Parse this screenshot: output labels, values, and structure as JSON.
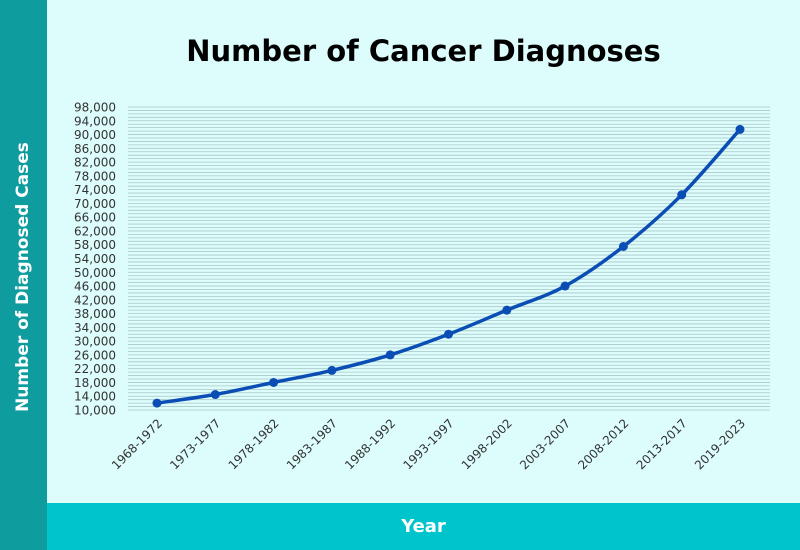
{
  "colors": {
    "background": "#ddfcfc",
    "side_band": "#0f9c9f",
    "bottom_band": "#00c4cc",
    "line": "#0a4db5",
    "grid": "#a9c7c7"
  },
  "chart_data": {
    "type": "line",
    "title": "Number of Cancer Diagnoses",
    "xlabel": "Year",
    "ylabel": "Number of Diagnosed Cases",
    "categories": [
      "1968-1972",
      "1973-1977",
      "1978-1982",
      "1983-1987",
      "1988-1992",
      "1993-1997",
      "1998-2002",
      "2003-2007",
      "2008-2012",
      "2013-2017",
      "2019-2023"
    ],
    "series": [
      {
        "values": [
          12000,
          14500,
          18000,
          21500,
          26000,
          32000,
          39000,
          46000,
          57500,
          72500,
          91500
        ]
      }
    ],
    "ylim": [
      10000,
      98000
    ],
    "yticks": [
      "10,000",
      "14,000",
      "18,000",
      "22,000",
      "26,000",
      "30,000",
      "34,000",
      "38,000",
      "42,000",
      "46,000",
      "50,000",
      "54,000",
      "58,000",
      "62,000",
      "66,000",
      "70,000",
      "74,000",
      "78,000",
      "82,000",
      "86,000",
      "90,000",
      "94,000",
      "98,000"
    ],
    "ytick_values": [
      10000,
      14000,
      18000,
      22000,
      26000,
      30000,
      34000,
      38000,
      42000,
      46000,
      50000,
      54000,
      58000,
      62000,
      66000,
      70000,
      74000,
      78000,
      82000,
      86000,
      90000,
      94000,
      98000
    ],
    "gridline_step": 1000,
    "grid": true,
    "legend": "none"
  }
}
